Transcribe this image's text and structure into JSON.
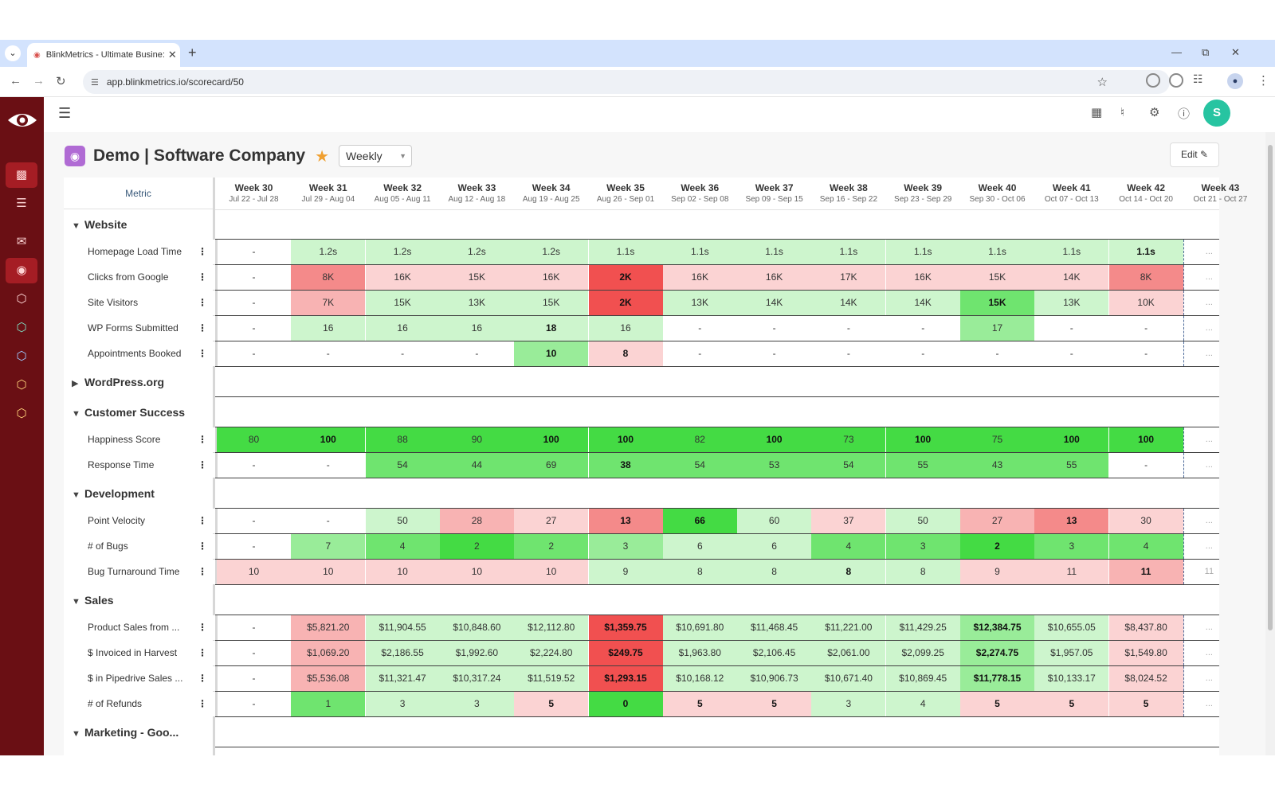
{
  "browser": {
    "tab_title": "BlinkMetrics - Ultimate Busine:",
    "url": "app.blinkmetrics.io/scorecard/50"
  },
  "app": {
    "title": "Demo | Software Company",
    "period_select": "Weekly",
    "edit_label": "Edit",
    "avatar_letter": "S",
    "metric_header": "Metric"
  },
  "weeks": [
    {
      "label": "Week 30",
      "range": "Jul 22 - Jul 28"
    },
    {
      "label": "Week 31",
      "range": "Jul 29 - Aug 04"
    },
    {
      "label": "Week 32",
      "range": "Aug 05 - Aug 11"
    },
    {
      "label": "Week 33",
      "range": "Aug 12 - Aug 18"
    },
    {
      "label": "Week 34",
      "range": "Aug 19 - Aug 25"
    },
    {
      "label": "Week 35",
      "range": "Aug 26 - Sep 01"
    },
    {
      "label": "Week 36",
      "range": "Sep 02 - Sep 08"
    },
    {
      "label": "Week 37",
      "range": "Sep 09 - Sep 15"
    },
    {
      "label": "Week 38",
      "range": "Sep 16 - Sep 22"
    },
    {
      "label": "Week 39",
      "range": "Sep 23 - Sep 29"
    },
    {
      "label": "Week 40",
      "range": "Sep 30 - Oct 06"
    },
    {
      "label": "Week 41",
      "range": "Oct 07 - Oct 13"
    },
    {
      "label": "Week 42",
      "range": "Oct 14 - Oct 20"
    },
    {
      "label": "Week 43",
      "range": "Oct 21 - Oct 27"
    }
  ],
  "sections": [
    {
      "name": "Website",
      "expanded": true,
      "metrics": [
        {
          "name": "Homepage Load Time",
          "values": [
            "-",
            "1.2s",
            "1.2s",
            "1.2s",
            "1.2s",
            "1.1s",
            "1.1s",
            "1.1s",
            "1.1s",
            "1.1s",
            "1.1s",
            "1.1s",
            "1.1s"
          ],
          "colors": [
            "",
            "g1",
            "g1",
            "g1",
            "g1",
            "g1",
            "g1",
            "g1",
            "g1",
            "g1",
            "g1",
            "g1",
            "g1"
          ],
          "bold": [
            12
          ],
          "ghost": "..."
        },
        {
          "name": "Clicks from Google",
          "values": [
            "-",
            "8K",
            "16K",
            "15K",
            "16K",
            "2K",
            "16K",
            "16K",
            "17K",
            "16K",
            "15K",
            "14K",
            "8K"
          ],
          "colors": [
            "",
            "r3",
            "r1",
            "r1",
            "r1",
            "r4",
            "r1",
            "r1",
            "r1",
            "r1",
            "r1",
            "r1",
            "r3"
          ],
          "bold": [
            5
          ],
          "ghost": "..."
        },
        {
          "name": "Site Visitors",
          "values": [
            "-",
            "7K",
            "15K",
            "13K",
            "15K",
            "2K",
            "13K",
            "14K",
            "14K",
            "14K",
            "15K",
            "13K",
            "10K"
          ],
          "colors": [
            "",
            "r2",
            "g1",
            "g1",
            "g1",
            "r4",
            "g1",
            "g1",
            "g1",
            "g1",
            "g3",
            "g1",
            "r1"
          ],
          "bold": [
            5,
            10
          ],
          "ghost": "..."
        },
        {
          "name": "WP Forms Submitted",
          "values": [
            "-",
            "16",
            "16",
            "16",
            "18",
            "16",
            "-",
            "-",
            "-",
            "-",
            "17",
            "-",
            "-"
          ],
          "colors": [
            "",
            "g1",
            "g1",
            "g1",
            "g1",
            "g1",
            "",
            "",
            "",
            "",
            "g2",
            "",
            ""
          ],
          "bold": [
            4
          ],
          "ghost": "..."
        },
        {
          "name": "Appointments Booked",
          "values": [
            "-",
            "-",
            "-",
            "-",
            "10",
            "8",
            "-",
            "-",
            "-",
            "-",
            "-",
            "-",
            "-"
          ],
          "colors": [
            "",
            "",
            "",
            "",
            "g2",
            "r1",
            "",
            "",
            "",
            "",
            "",
            "",
            ""
          ],
          "bold": [
            4,
            5
          ],
          "ghost": "..."
        }
      ]
    },
    {
      "name": "WordPress.org",
      "expanded": false,
      "metrics": []
    },
    {
      "name": "Customer Success",
      "expanded": true,
      "metrics": [
        {
          "name": "Happiness Score",
          "values": [
            "80",
            "100",
            "88",
            "90",
            "100",
            "100",
            "82",
            "100",
            "73",
            "100",
            "75",
            "100",
            "100"
          ],
          "colors": [
            "g4",
            "g4",
            "g4",
            "g4",
            "g4",
            "g4",
            "g4",
            "g4",
            "g4",
            "g4",
            "g4",
            "g4",
            "g4"
          ],
          "bold": [
            1,
            4,
            5,
            7,
            9,
            11,
            12
          ],
          "ghost": "..."
        },
        {
          "name": "Response Time",
          "values": [
            "-",
            "-",
            "54",
            "44",
            "69",
            "38",
            "54",
            "53",
            "54",
            "55",
            "43",
            "55",
            "-"
          ],
          "colors": [
            "",
            "",
            "g3",
            "g3",
            "g3",
            "g3",
            "g3",
            "g3",
            "g3",
            "g3",
            "g3",
            "g3",
            ""
          ],
          "bold": [
            5
          ],
          "ghost": "..."
        }
      ]
    },
    {
      "name": "Development",
      "expanded": true,
      "metrics": [
        {
          "name": "Point Velocity",
          "values": [
            "-",
            "-",
            "50",
            "28",
            "27",
            "13",
            "66",
            "60",
            "37",
            "50",
            "27",
            "13",
            "30"
          ],
          "colors": [
            "",
            "",
            "g1",
            "r2",
            "r1",
            "r3",
            "g4",
            "g1",
            "r1",
            "g1",
            "r2",
            "r3",
            "r1"
          ],
          "bold": [
            5,
            6,
            11
          ],
          "ghost": "..."
        },
        {
          "name": "# of Bugs",
          "values": [
            "-",
            "7",
            "4",
            "2",
            "2",
            "3",
            "6",
            "6",
            "4",
            "3",
            "2",
            "3",
            "4"
          ],
          "colors": [
            "",
            "g2",
            "g3",
            "g4",
            "g3",
            "g2",
            "g1",
            "g1",
            "g3",
            "g3",
            "g4",
            "g3",
            "g3"
          ],
          "bold": [
            10
          ],
          "ghost": "..."
        },
        {
          "name": "Bug Turnaround Time",
          "values": [
            "10",
            "10",
            "10",
            "10",
            "10",
            "9",
            "8",
            "8",
            "8",
            "8",
            "9",
            "11",
            "11"
          ],
          "colors": [
            "r1",
            "r1",
            "r1",
            "r1",
            "r1",
            "g1",
            "g1",
            "g1",
            "g1",
            "g1",
            "r1",
            "r1",
            "r2"
          ],
          "bold": [
            8,
            12
          ],
          "ghost": "11"
        }
      ]
    },
    {
      "name": "Sales",
      "expanded": true,
      "metrics": [
        {
          "name": "Product Sales from ...",
          "values": [
            "-",
            "$5,821.20",
            "$11,904.55",
            "$10,848.60",
            "$12,112.80",
            "$1,359.75",
            "$10,691.80",
            "$11,468.45",
            "$11,221.00",
            "$11,429.25",
            "$12,384.75",
            "$10,655.05",
            "$8,437.80"
          ],
          "colors": [
            "",
            "r2",
            "g1",
            "g1",
            "g1",
            "r4",
            "g1",
            "g1",
            "g1",
            "g1",
            "g2",
            "g1",
            "r1"
          ],
          "bold": [
            5,
            10
          ],
          "ghost": "..."
        },
        {
          "name": "$ Invoiced in Harvest",
          "values": [
            "-",
            "$1,069.20",
            "$2,186.55",
            "$1,992.60",
            "$2,224.80",
            "$249.75",
            "$1,963.80",
            "$2,106.45",
            "$2,061.00",
            "$2,099.25",
            "$2,274.75",
            "$1,957.05",
            "$1,549.80"
          ],
          "colors": [
            "",
            "r2",
            "g1",
            "g1",
            "g1",
            "r4",
            "g1",
            "g1",
            "g1",
            "g1",
            "g2",
            "g1",
            "r1"
          ],
          "bold": [
            5,
            10
          ],
          "ghost": "..."
        },
        {
          "name": "$ in Pipedrive Sales ...",
          "values": [
            "-",
            "$5,536.08",
            "$11,321.47",
            "$10,317.24",
            "$11,519.52",
            "$1,293.15",
            "$10,168.12",
            "$10,906.73",
            "$10,671.40",
            "$10,869.45",
            "$11,778.15",
            "$10,133.17",
            "$8,024.52"
          ],
          "colors": [
            "",
            "r2",
            "g1",
            "g1",
            "g1",
            "r4",
            "g1",
            "g1",
            "g1",
            "g1",
            "g2",
            "g1",
            "r1"
          ],
          "bold": [
            5,
            10
          ],
          "ghost": "..."
        },
        {
          "name": "# of Refunds",
          "values": [
            "-",
            "1",
            "3",
            "3",
            "5",
            "0",
            "5",
            "5",
            "3",
            "4",
            "5",
            "5",
            "5"
          ],
          "colors": [
            "",
            "g3",
            "g1",
            "g1",
            "r1",
            "g4",
            "r1",
            "r1",
            "g1",
            "g1",
            "r1",
            "r1",
            "r1"
          ],
          "bold": [
            4,
            5,
            6,
            7,
            10,
            11,
            12
          ],
          "ghost": "..."
        }
      ]
    },
    {
      "name": "Marketing - Goo...",
      "expanded": true,
      "metrics": []
    }
  ]
}
